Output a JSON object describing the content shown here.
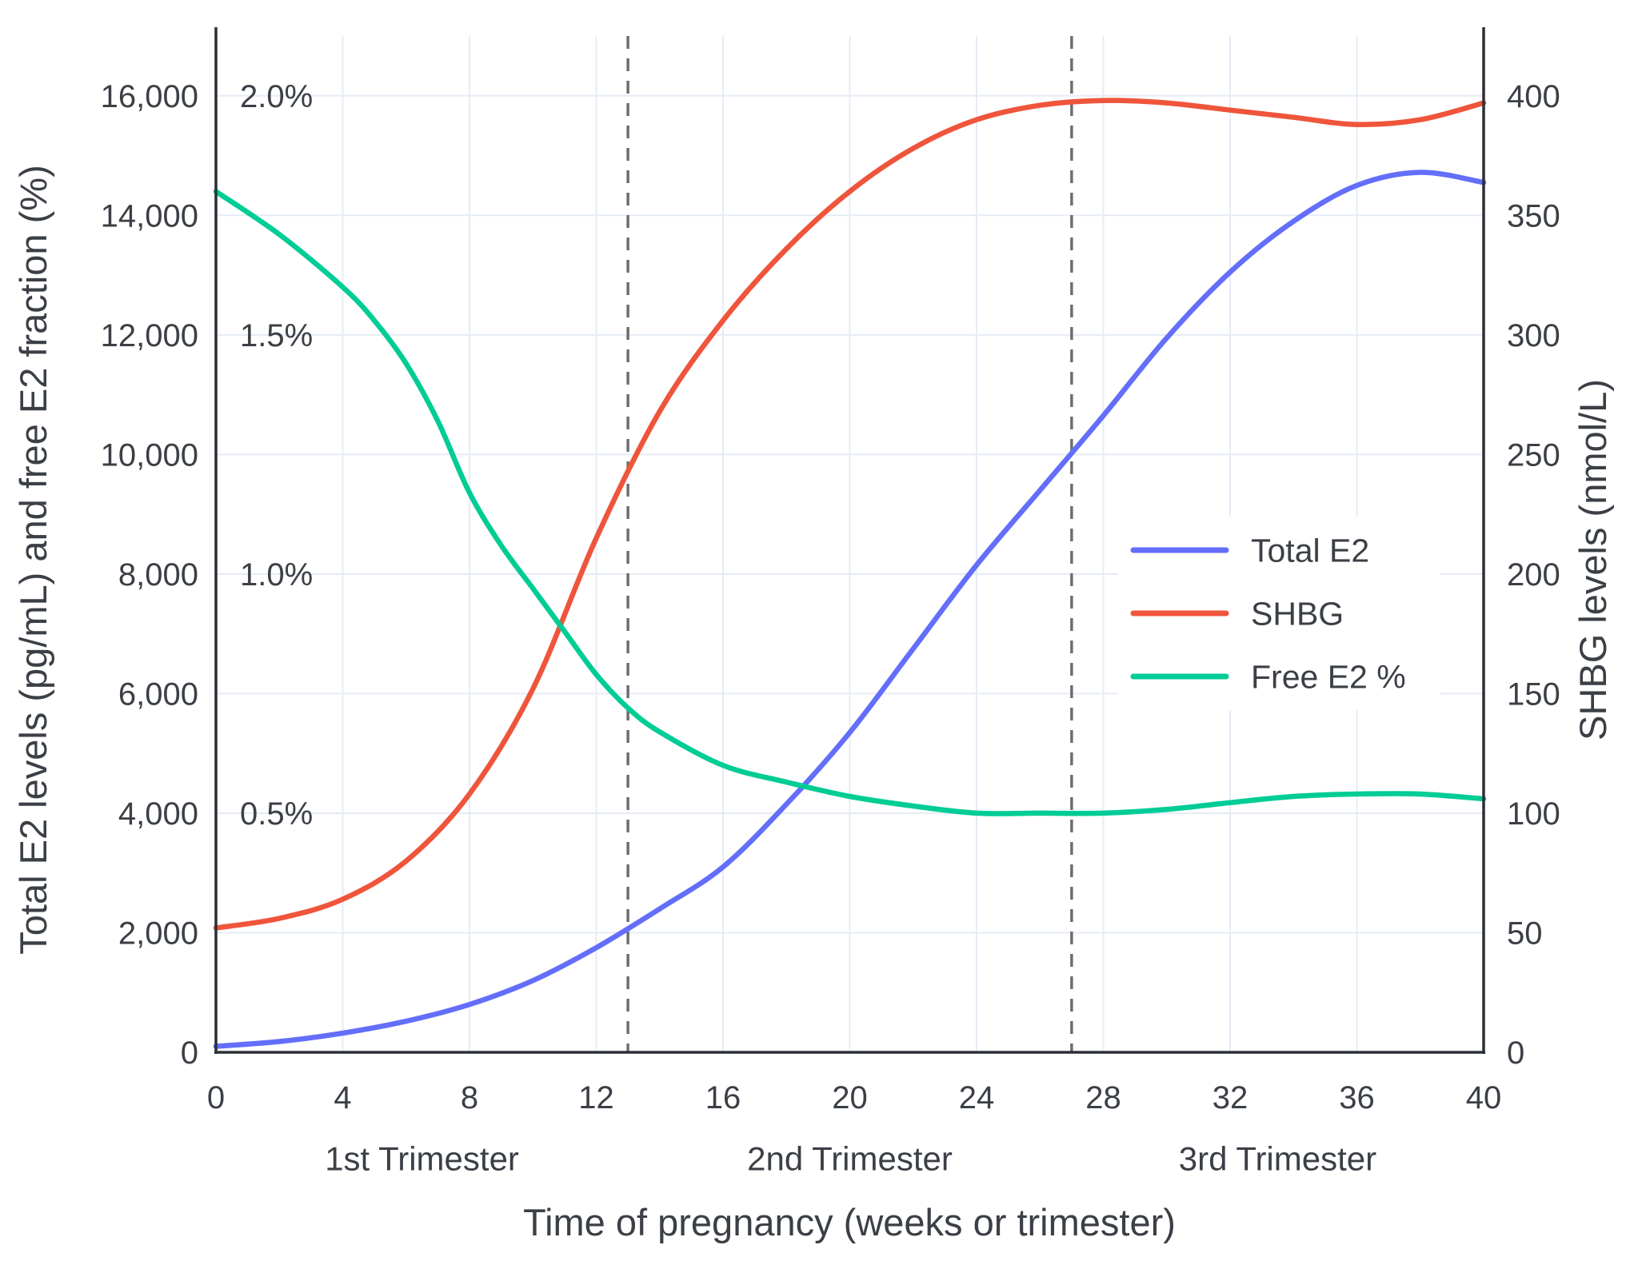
{
  "chart_data": {
    "type": "line",
    "title": "",
    "xlabel": "Time of pregnancy (weeks or trimester)",
    "ylabel_left": "Total E2 levels (pg/mL) and free E2 fraction (%)",
    "ylabel_right": "SHBG levels (nmol/L)",
    "x_range": [
      0,
      40
    ],
    "x_ticks": [
      0,
      4,
      8,
      12,
      16,
      20,
      24,
      28,
      32,
      36,
      40
    ],
    "left_axis": {
      "range": [
        0,
        17000
      ],
      "ticks": [
        0,
        2000,
        4000,
        6000,
        8000,
        10000,
        12000,
        14000,
        16000
      ],
      "percent_labels": [
        {
          "value": 16000,
          "label": "2.0%"
        },
        {
          "value": 12000,
          "label": "1.5%"
        },
        {
          "value": 8000,
          "label": "1.0%"
        },
        {
          "value": 4000,
          "label": "0.5%"
        }
      ]
    },
    "right_axis": {
      "range": [
        0,
        425
      ],
      "ticks": [
        0,
        50,
        100,
        150,
        200,
        250,
        300,
        350,
        400
      ]
    },
    "trimester_dividers_weeks": [
      13,
      27
    ],
    "trimester_labels": [
      {
        "label": "1st Trimester",
        "week": 6.5
      },
      {
        "label": "2nd Trimester",
        "week": 20
      },
      {
        "label": "3rd Trimester",
        "week": 33.5
      }
    ],
    "series": [
      {
        "name": "Total E2",
        "axis": "left",
        "color": "#636efa",
        "x": [
          0,
          2,
          4,
          6,
          8,
          10,
          12,
          14,
          16,
          18,
          20,
          22,
          24,
          26,
          28,
          30,
          32,
          34,
          36,
          38,
          40
        ],
        "y": [
          100,
          180,
          320,
          520,
          800,
          1200,
          1750,
          2400,
          3100,
          4150,
          5350,
          6750,
          8150,
          9400,
          10650,
          11950,
          13050,
          13900,
          14500,
          14720,
          14550
        ]
      },
      {
        "name": "SHBG",
        "axis": "right",
        "color": "#ef553b",
        "x": [
          0,
          2,
          4,
          6,
          8,
          10,
          12,
          14,
          16,
          18,
          20,
          22,
          24,
          26,
          28,
          30,
          32,
          34,
          36,
          38,
          40
        ],
        "y": [
          52,
          56,
          64,
          80,
          108,
          152,
          215,
          268,
          306,
          336,
          360,
          378,
          390,
          396,
          398,
          397,
          394,
          391,
          388,
          390,
          397
        ]
      },
      {
        "name": "Free E2 %",
        "axis": "left_percent",
        "percent_to_left_scale": 8000,
        "color": "#00cc96",
        "x": [
          0,
          2,
          4,
          5,
          6,
          7,
          8,
          9,
          10,
          11,
          12,
          13,
          14,
          16,
          18,
          20,
          22,
          24,
          26,
          28,
          30,
          32,
          34,
          36,
          38,
          40
        ],
        "y": [
          1.8,
          1.71,
          1.6,
          1.53,
          1.44,
          1.32,
          1.17,
          1.06,
          0.97,
          0.88,
          0.79,
          0.72,
          0.67,
          0.6,
          0.565,
          0.535,
          0.515,
          0.5,
          0.5,
          0.5,
          0.508,
          0.522,
          0.535,
          0.54,
          0.54,
          0.53
        ]
      }
    ],
    "legend": [
      "Total E2",
      "SHBG",
      "Free E2 %"
    ],
    "style": {
      "grid_color": "#e6ecf5",
      "spine_color": "#2b2f36",
      "text_color": "#3b3f46",
      "divider_color": "#6e6e6e",
      "background": "#ffffff"
    }
  }
}
